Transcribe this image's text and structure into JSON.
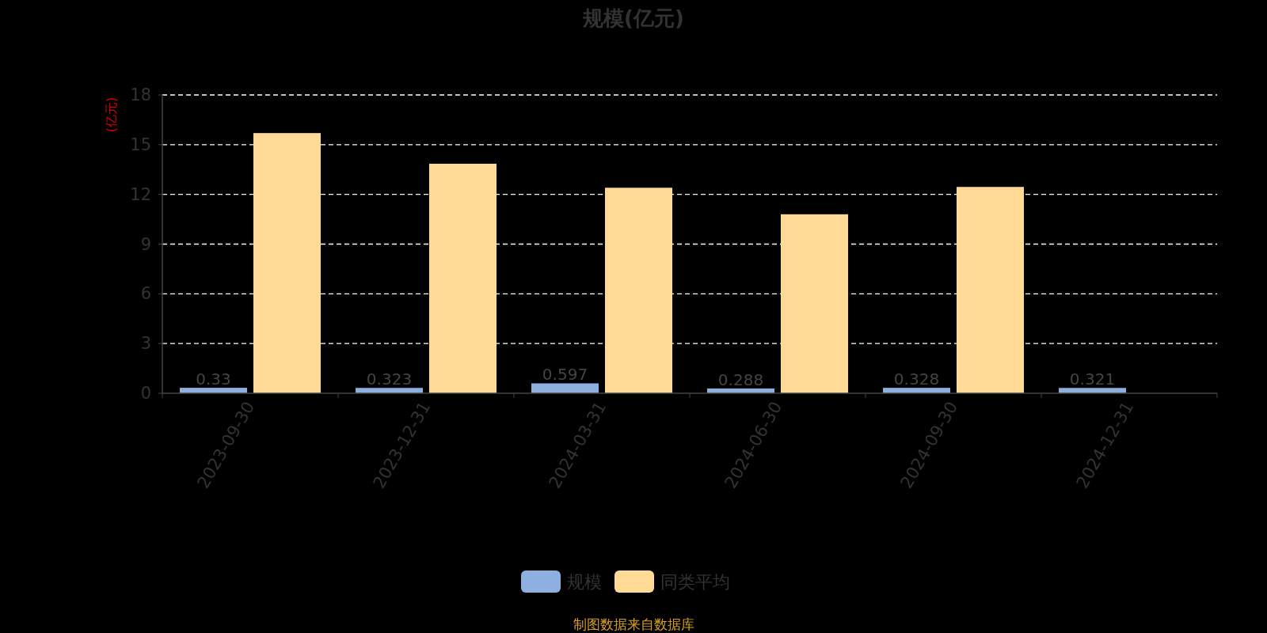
{
  "chart_data": {
    "type": "bar",
    "title": "规模(亿元)",
    "ylabel": "(亿元)",
    "categories": [
      "2023-09-30",
      "2023-12-31",
      "2024-03-31",
      "2024-06-30",
      "2024-09-30",
      "2024-12-31"
    ],
    "series": [
      {
        "name": "规模",
        "color": "#8eb0e0",
        "values": [
          0.33,
          0.323,
          0.597,
          0.288,
          0.328,
          0.321
        ],
        "data_labels": true
      },
      {
        "name": "同类平均",
        "color": "#ffd996",
        "values": [
          15.7,
          13.85,
          12.4,
          10.8,
          12.45,
          null
        ]
      }
    ],
    "ylim": [
      0,
      18
    ],
    "yticks": [
      0,
      3,
      6,
      9,
      12,
      15,
      18
    ],
    "grid": "y",
    "legend": "bottom",
    "annotations": [
      "制图数据来自数据库"
    ]
  }
}
